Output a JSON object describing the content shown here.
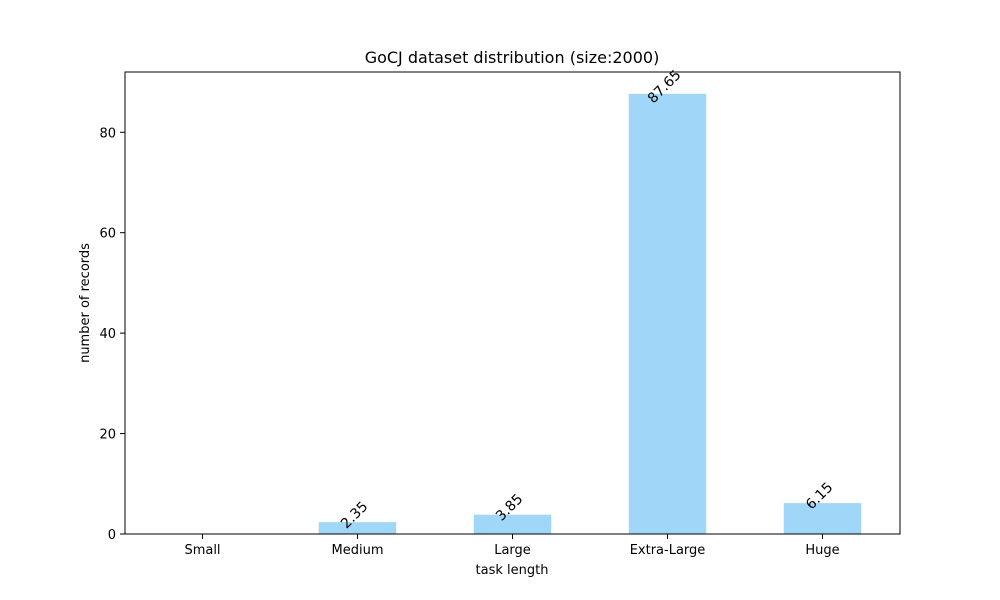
{
  "chart_data": {
    "type": "bar",
    "title": "GoCJ dataset distribution (size:2000)",
    "xlabel": "task length",
    "ylabel": "number of records",
    "categories": [
      "Small",
      "Medium",
      "Large",
      "Extra-Large",
      "Huge"
    ],
    "values": [
      0,
      2.35,
      3.85,
      87.65,
      6.15
    ],
    "data_labels": [
      "",
      "2.35",
      "3.85",
      "87.65",
      "6.15"
    ],
    "ylim": [
      0,
      92.0
    ],
    "yticks": [
      0,
      20,
      40,
      60,
      80
    ],
    "ytick_labels": [
      "0",
      "20",
      "40",
      "60",
      "80"
    ],
    "grid": false,
    "bar_color": "#a0d6f8",
    "axis_color": "#000000"
  }
}
